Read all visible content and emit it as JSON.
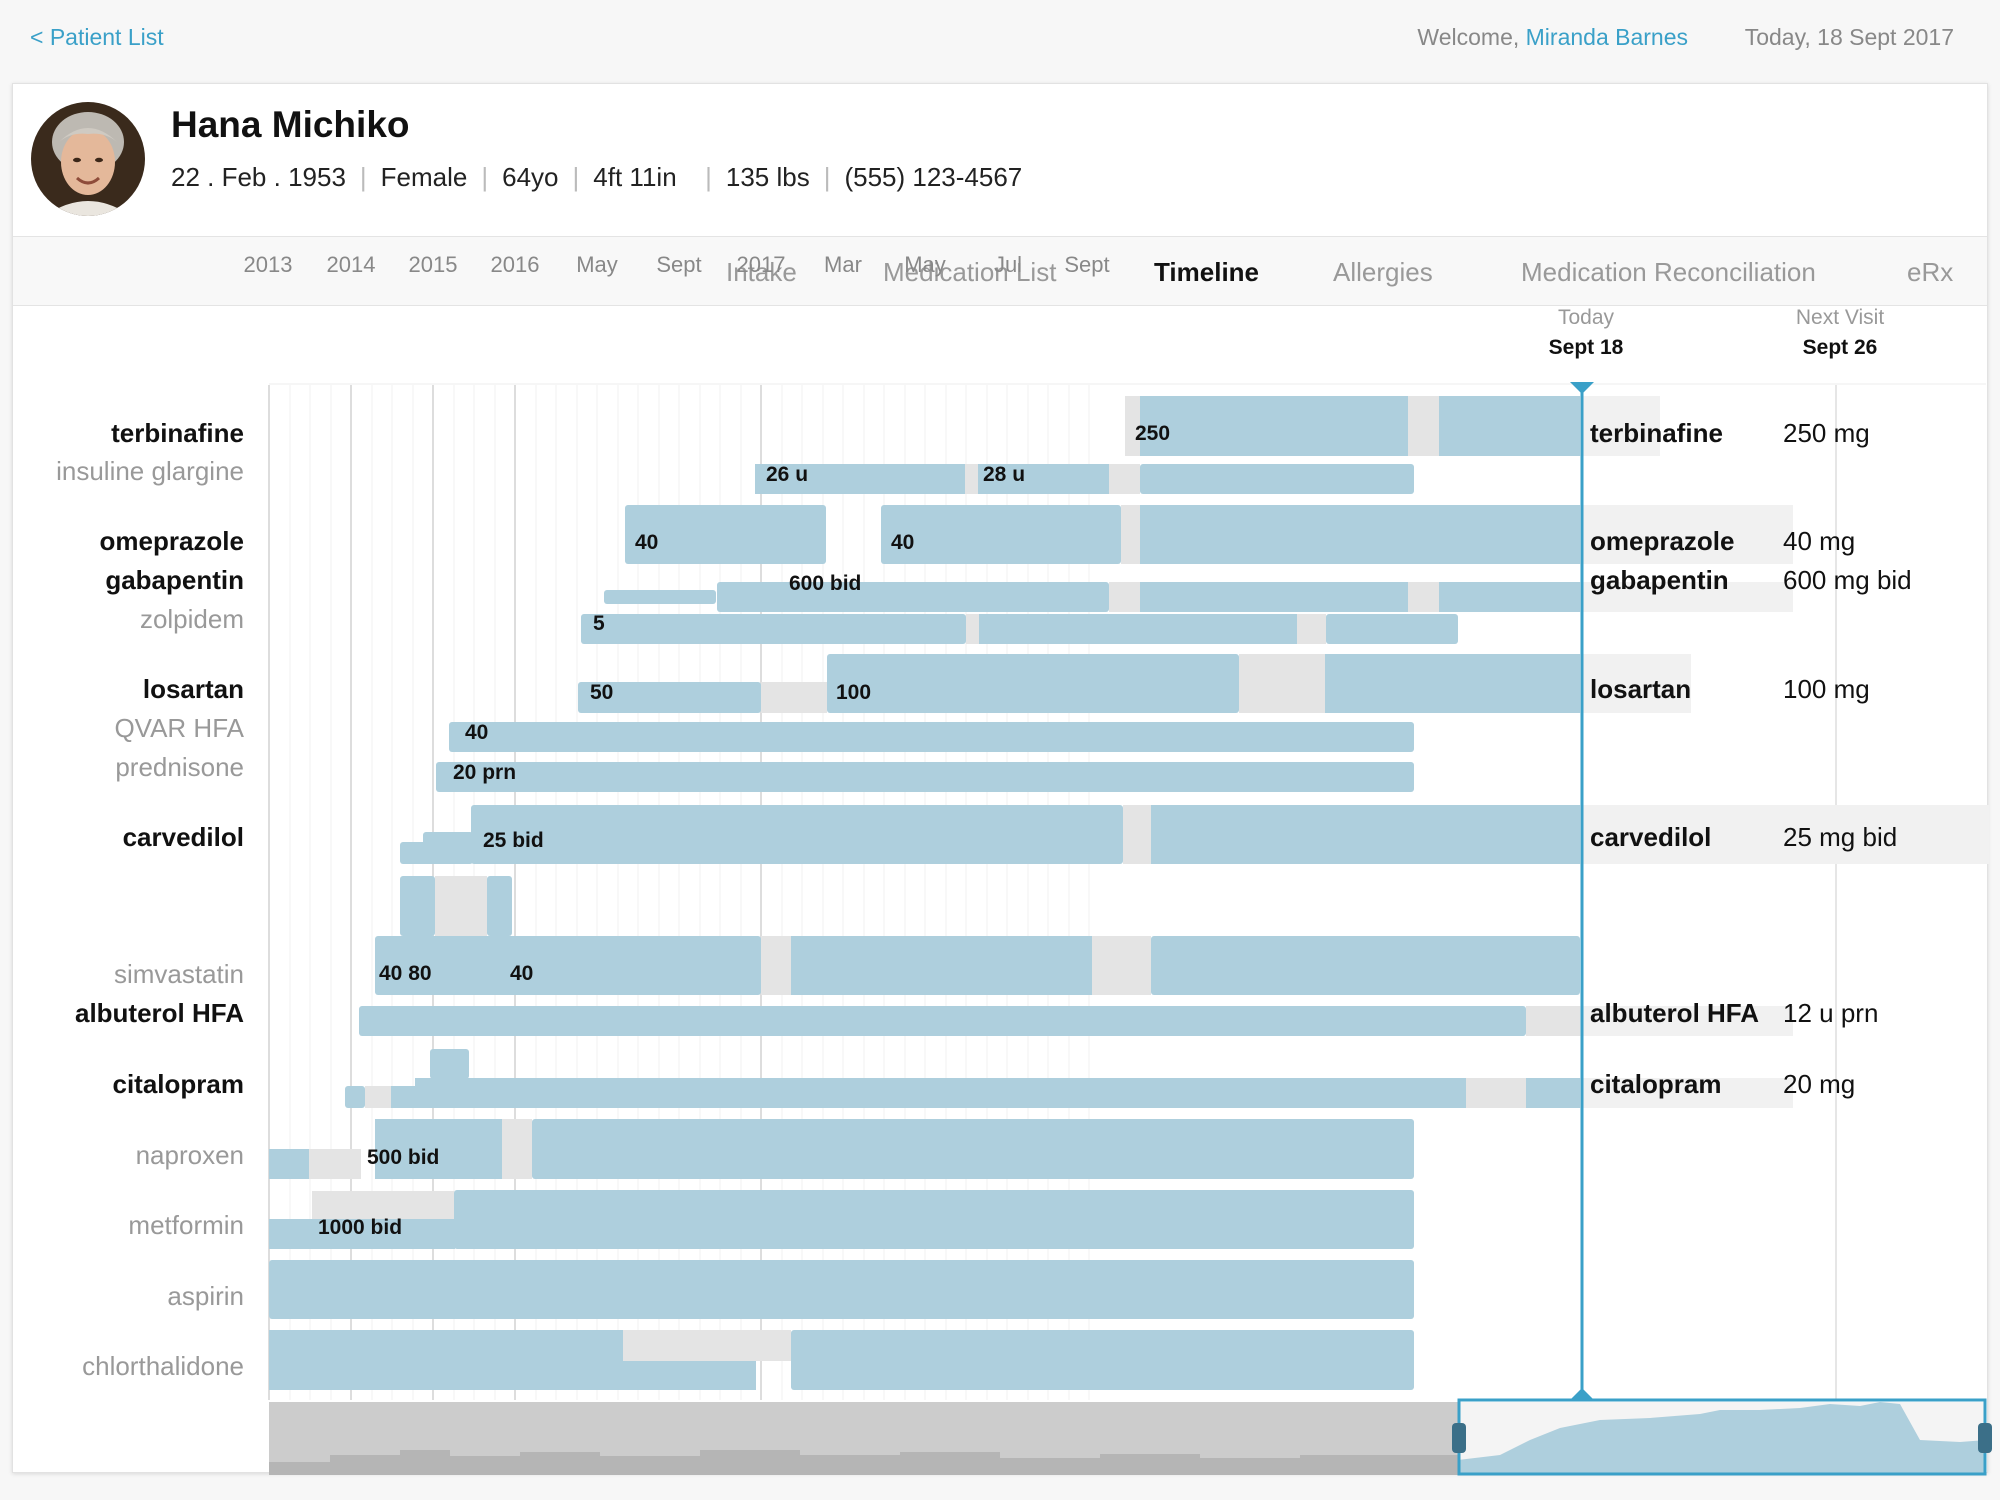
{
  "topbar": {
    "back_label": "< Patient List",
    "welcome_prefix": "Welcome, ",
    "user_name": "Miranda Barnes",
    "today": "Today, 18 Sept 2017"
  },
  "patient": {
    "name": "Hana Michiko",
    "dob": "22 . Feb . 1953",
    "sex": "Female",
    "age": "64yo",
    "height": "4ft 11in",
    "weight": "135 lbs",
    "phone": "(555) 123-4567"
  },
  "tabs": [
    "Intake",
    "Medication List",
    "Timeline",
    "Allergies",
    "Medication Reconciliation",
    "eRx"
  ],
  "active_tab": "Timeline",
  "axis": {
    "labels": [
      "2013",
      "2014",
      "2015",
      "2016",
      "May",
      "Sept",
      "2017",
      "Mar",
      "May",
      "Jul",
      "Sept"
    ],
    "today_top": "Today",
    "today_bottom": "Sept 18",
    "next_top": "Next Visit",
    "next_bottom": "Sept 26"
  },
  "med_names": [
    {
      "name": "terbinafine",
      "status": "current"
    },
    {
      "name": "insuline glargine",
      "status": "past"
    },
    {
      "name": "omeprazole",
      "status": "current"
    },
    {
      "name": "gabapentin",
      "status": "current"
    },
    {
      "name": "zolpidem",
      "status": "past"
    },
    {
      "name": "losartan",
      "status": "current"
    },
    {
      "name": "QVAR HFA",
      "status": "past"
    },
    {
      "name": "prednisone",
      "status": "past"
    },
    {
      "name": "carvedilol",
      "status": "current"
    },
    {
      "name": "simvastatin",
      "status": "past"
    },
    {
      "name": "albuterol HFA",
      "status": "current"
    },
    {
      "name": "citalopram",
      "status": "current"
    },
    {
      "name": "naproxen",
      "status": "past"
    },
    {
      "name": "metformin",
      "status": "past"
    },
    {
      "name": "aspirin",
      "status": "past"
    },
    {
      "name": "chlorthalidone",
      "status": "past"
    }
  ],
  "current_meds": [
    {
      "name": "terbinafine",
      "dose": "250 mg"
    },
    {
      "name": "omeprazole",
      "dose": "40 mg"
    },
    {
      "name": "gabapentin",
      "dose": "600 mg bid"
    },
    {
      "name": "losartan",
      "dose": "100 mg"
    },
    {
      "name": "carvedilol",
      "dose": "25 mg bid"
    },
    {
      "name": "albuterol HFA",
      "dose": "12 u prn"
    },
    {
      "name": "citalopram",
      "dose": "20 mg"
    }
  ],
  "dose_labels": [
    "250",
    "26 u",
    "28 u",
    "40",
    "40",
    "600 bid",
    "5",
    "50",
    "100",
    "40",
    "20 prn",
    "25 bid",
    "40 80",
    "40",
    "500 bid",
    "1000 bid"
  ],
  "colors": {
    "bar": "#aecfdd",
    "gap": "#e4e4e4",
    "accent": "#3aa0c8",
    "overview_bg": "#cccccc"
  }
}
